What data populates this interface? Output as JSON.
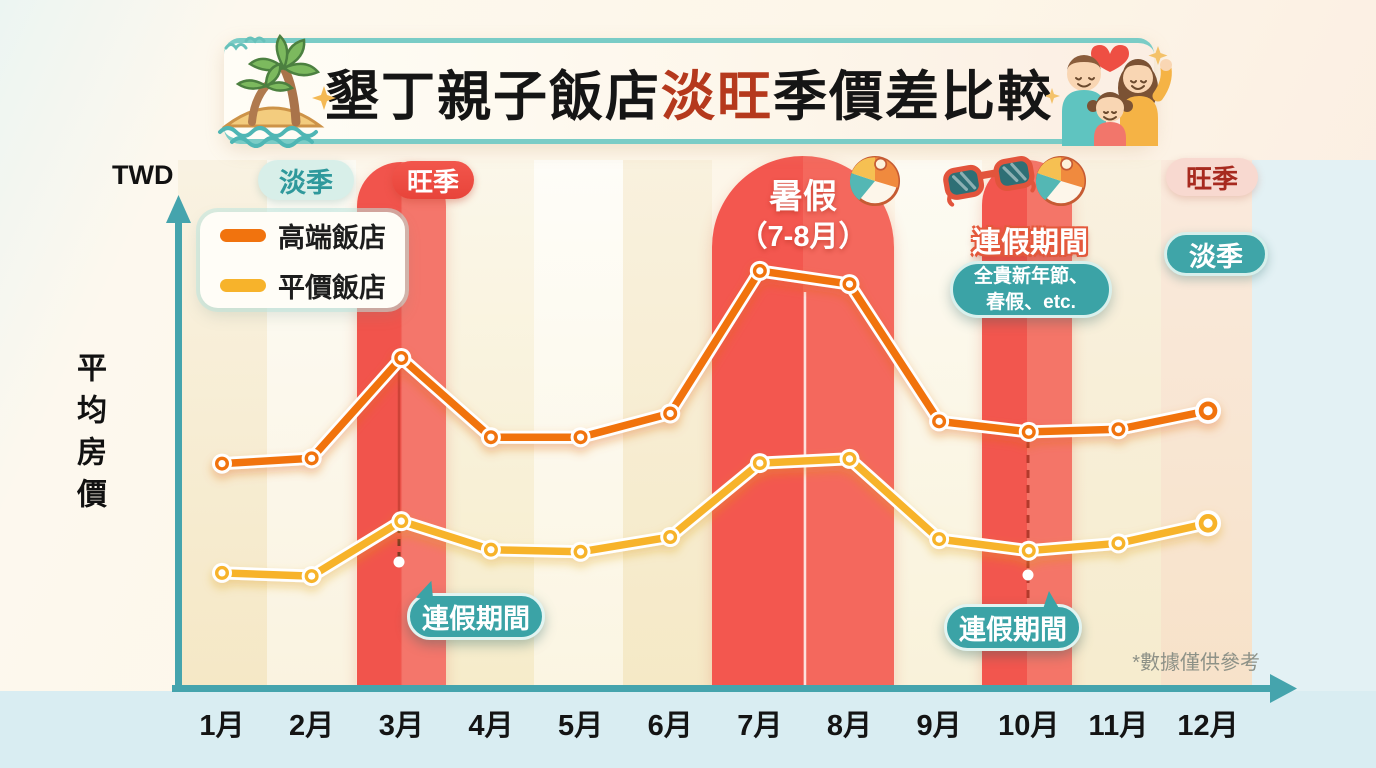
{
  "title": {
    "prefix": "墾丁親子飯店",
    "highlight": "淡旺",
    "suffix": "季價差比較"
  },
  "y_axis": {
    "unit": "TWD",
    "label": "平均房價"
  },
  "footnote": "*數據僅供參考",
  "legend": {
    "items": [
      {
        "label": "高端飯店",
        "color": "#f1730e"
      },
      {
        "label": "平價飯店",
        "color": "#f7b32b"
      }
    ]
  },
  "season_tags": {
    "left_off": "淡季",
    "left_peak": "旺季",
    "right_peak": "旺季",
    "right_off": "淡季"
  },
  "annotations": {
    "summer": {
      "line1": "暑假",
      "line2": "（7-8月）"
    },
    "holiday_top": {
      "title": "連假期間",
      "note_line1": "全貴新年節、",
      "note_line2": "春假、etc."
    },
    "holiday_callout_left": "連假期間",
    "holiday_callout_right": "連假期間"
  },
  "icons": {
    "left_banner": "palm-island-icon",
    "right_banner": "family-icon",
    "summer_ball": "beach-ball-icon",
    "holiday_sunglasses": "sunglasses-icon",
    "holiday_ball": "beach-ball-icon",
    "heart": "heart-icon",
    "sparkle": "sparkle-icon"
  },
  "colors": {
    "accent_teal": "#3fa5a8",
    "peak_band_red": "#f3564e",
    "highlight_text_red": "#b5391d",
    "axis_teal": "#45a4ad"
  },
  "chart_data": {
    "type": "line",
    "categories": [
      "1月",
      "2月",
      "3月",
      "4月",
      "5月",
      "6月",
      "7月",
      "8月",
      "9月",
      "10月",
      "11月",
      "12月"
    ],
    "series": [
      {
        "name": "高端飯店",
        "color": "#f1730e",
        "values": [
          42.5,
          43.5,
          62.5,
          47.5,
          47.5,
          52,
          79,
          76.5,
          50.5,
          48.5,
          49,
          52.5
        ]
      },
      {
        "name": "平價飯店",
        "color": "#f7b32b",
        "values": [
          21.8,
          21.2,
          31.6,
          26.2,
          25.8,
          28.6,
          42.6,
          43.4,
          28.2,
          26,
          27.4,
          31.2
        ]
      }
    ],
    "title": "墾丁親子飯店淡旺季價差比較",
    "xlabel": "",
    "ylabel": "平均房價",
    "y_unit": "TWD",
    "ylim": [
      0,
      100
    ],
    "grid": false,
    "legend_position": "top-left",
    "peak_highlight_months": [
      "3月",
      "7月",
      "8月",
      "10月"
    ]
  }
}
